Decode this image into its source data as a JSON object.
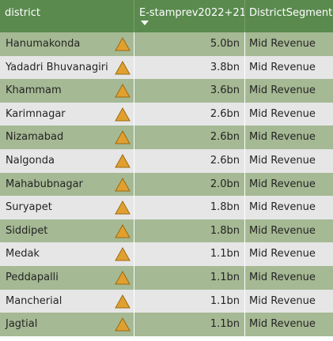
{
  "columns": {
    "district": "district",
    "stamp": "E-stamprev2022+21",
    "segment": "DistrictSegment"
  },
  "colors": {
    "header_bg": "#5a8a4e",
    "row_odd": "#a5b994",
    "row_even": "#e6e6e6",
    "warning_icon": "#e0a030"
  },
  "rows": [
    {
      "district": "Hanumakonda",
      "icon": "warning-triangle-icon",
      "value": "5.0bn",
      "segment": "Mid Revenue"
    },
    {
      "district": "Yadadri Bhuvanagiri",
      "icon": "warning-triangle-icon",
      "value": "3.8bn",
      "segment": "Mid Revenue"
    },
    {
      "district": "Khammam",
      "icon": "warning-triangle-icon",
      "value": "3.6bn",
      "segment": "Mid Revenue"
    },
    {
      "district": "Karimnagar",
      "icon": "warning-triangle-icon",
      "value": "2.6bn",
      "segment": "Mid Revenue"
    },
    {
      "district": "Nizamabad",
      "icon": "warning-triangle-icon",
      "value": "2.6bn",
      "segment": "Mid Revenue"
    },
    {
      "district": "Nalgonda",
      "icon": "warning-triangle-icon",
      "value": "2.6bn",
      "segment": "Mid Revenue"
    },
    {
      "district": "Mahabubnagar",
      "icon": "warning-triangle-icon",
      "value": "2.0bn",
      "segment": "Mid Revenue"
    },
    {
      "district": "Suryapet",
      "icon": "warning-triangle-icon",
      "value": "1.8bn",
      "segment": "Mid Revenue"
    },
    {
      "district": "Siddipet",
      "icon": "warning-triangle-icon",
      "value": "1.8bn",
      "segment": "Mid Revenue"
    },
    {
      "district": "Medak",
      "icon": "warning-triangle-icon",
      "value": "1.1bn",
      "segment": "Mid Revenue"
    },
    {
      "district": "Peddapalli",
      "icon": "warning-triangle-icon",
      "value": "1.1bn",
      "segment": "Mid Revenue"
    },
    {
      "district": "Mancherial",
      "icon": "warning-triangle-icon",
      "value": "1.1bn",
      "segment": "Mid Revenue"
    },
    {
      "district": "Jagtial",
      "icon": "warning-triangle-icon",
      "value": "1.1bn",
      "segment": "Mid Revenue"
    }
  ]
}
